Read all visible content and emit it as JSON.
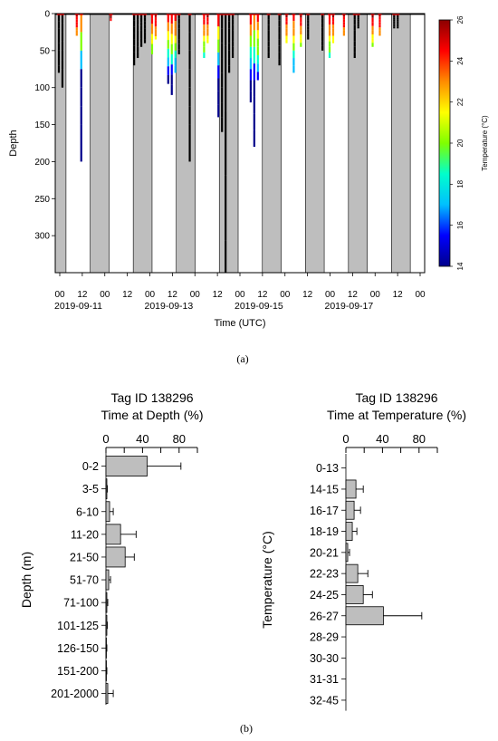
{
  "panel_a_label": "(a)",
  "panel_b_label": "(b)",
  "chart_data": [
    {
      "type": "line",
      "panel": "a",
      "xlabel": "Time (UTC)",
      "ylabel": "Depth",
      "ylim": [
        0,
        350
      ],
      "y_reversed": true,
      "y_ticks": [
        0,
        50,
        100,
        150,
        200,
        250,
        300
      ],
      "x_tick_labels": [
        "00",
        "12",
        "00",
        "12",
        "00",
        "12",
        "00",
        "12",
        "00",
        "12",
        "00",
        "12",
        "00",
        "12",
        "00",
        "12",
        "00"
      ],
      "date_labels": [
        "2019-09-11",
        "2019-09-13",
        "2019-09-15",
        "2019-09-17"
      ],
      "colorbar": {
        "label": "Temperature (°C)",
        "min": 14,
        "max": 26,
        "ticks": [
          14,
          16,
          18,
          20,
          22,
          24,
          26
        ],
        "colors": [
          "#00008b",
          "#0000ff",
          "#00bfff",
          "#00ffcc",
          "#7fff00",
          "#ffff00",
          "#ff8c00",
          "#ff0000",
          "#8b0000"
        ]
      },
      "night_shading_color": "#bebebe",
      "dives": [
        {
          "x_h": 1,
          "max_depth": 80
        },
        {
          "x_h": 3,
          "max_depth": 100
        },
        {
          "x_h": 11,
          "max_depth": 30
        },
        {
          "x_h": 13.5,
          "max_depth": 200
        },
        {
          "x_h": 30,
          "max_depth": 10
        },
        {
          "x_h": 43,
          "max_depth": 70
        },
        {
          "x_h": 45,
          "max_depth": 60
        },
        {
          "x_h": 47,
          "max_depth": 45
        },
        {
          "x_h": 49,
          "max_depth": 40
        },
        {
          "x_h": 53,
          "max_depth": 55
        },
        {
          "x_h": 55,
          "max_depth": 35
        },
        {
          "x_h": 62,
          "max_depth": 95
        },
        {
          "x_h": 64,
          "max_depth": 110
        },
        {
          "x_h": 66,
          "max_depth": 80
        },
        {
          "x_h": 68,
          "max_depth": 55
        },
        {
          "x_h": 74,
          "max_depth": 200
        },
        {
          "x_h": 82,
          "max_depth": 60
        },
        {
          "x_h": 84,
          "max_depth": 40
        },
        {
          "x_h": 90,
          "max_depth": 140
        },
        {
          "x_h": 92,
          "max_depth": 160
        },
        {
          "x_h": 94,
          "max_depth": 350
        },
        {
          "x_h": 96,
          "max_depth": 80
        },
        {
          "x_h": 98,
          "max_depth": 60
        },
        {
          "x_h": 108,
          "max_depth": 120
        },
        {
          "x_h": 110,
          "max_depth": 180
        },
        {
          "x_h": 112,
          "max_depth": 90
        },
        {
          "x_h": 118,
          "max_depth": 60
        },
        {
          "x_h": 124,
          "max_depth": 70
        },
        {
          "x_h": 128,
          "max_depth": 40
        },
        {
          "x_h": 132,
          "max_depth": 80
        },
        {
          "x_h": 136,
          "max_depth": 45
        },
        {
          "x_h": 140,
          "max_depth": 35
        },
        {
          "x_h": 148,
          "max_depth": 50
        },
        {
          "x_h": 152,
          "max_depth": 60
        },
        {
          "x_h": 154,
          "max_depth": 40
        },
        {
          "x_h": 160,
          "max_depth": 30
        },
        {
          "x_h": 166,
          "max_depth": 60
        },
        {
          "x_h": 168,
          "max_depth": 20
        },
        {
          "x_h": 176,
          "max_depth": 45
        },
        {
          "x_h": 180,
          "max_depth": 30
        },
        {
          "x_h": 188,
          "max_depth": 20
        },
        {
          "x_h": 190,
          "max_depth": 20
        }
      ]
    },
    {
      "type": "bar",
      "orientation": "horizontal",
      "title": "Tag ID 138296",
      "subtitle": "Time at Depth (%)",
      "ylabel": "Depth (m)",
      "xlim": [
        0,
        100
      ],
      "x_ticks": [
        0,
        40,
        80
      ],
      "categories": [
        "0-2",
        "3-5",
        "6-10",
        "11-20",
        "21-50",
        "51-70",
        "71-100",
        "101-125",
        "126-150",
        "151-200",
        "201-2000"
      ],
      "values": [
        45,
        1,
        4,
        16,
        21,
        3,
        1,
        1,
        0.5,
        0.5,
        2
      ],
      "errors": [
        37,
        0.5,
        4,
        17,
        10,
        2,
        1,
        0.5,
        0.5,
        0.5,
        6
      ]
    },
    {
      "type": "bar",
      "orientation": "horizontal",
      "title": "Tag ID 138296",
      "subtitle": "Time at Temperature (%)",
      "ylabel": "Temperature (°C)",
      "xlim": [
        0,
        100
      ],
      "x_ticks": [
        0,
        40,
        80
      ],
      "categories": [
        "0-13",
        "14-15",
        "16-17",
        "18-19",
        "20-21",
        "22-23",
        "24-25",
        "26-27",
        "28-29",
        "30-30",
        "31-31",
        "32-45"
      ],
      "values": [
        0,
        11,
        9,
        7,
        2,
        13,
        19,
        41,
        0,
        0,
        0,
        0
      ],
      "errors": [
        0,
        8,
        7,
        5,
        2,
        11,
        10,
        42,
        0,
        0,
        0,
        0
      ]
    }
  ]
}
